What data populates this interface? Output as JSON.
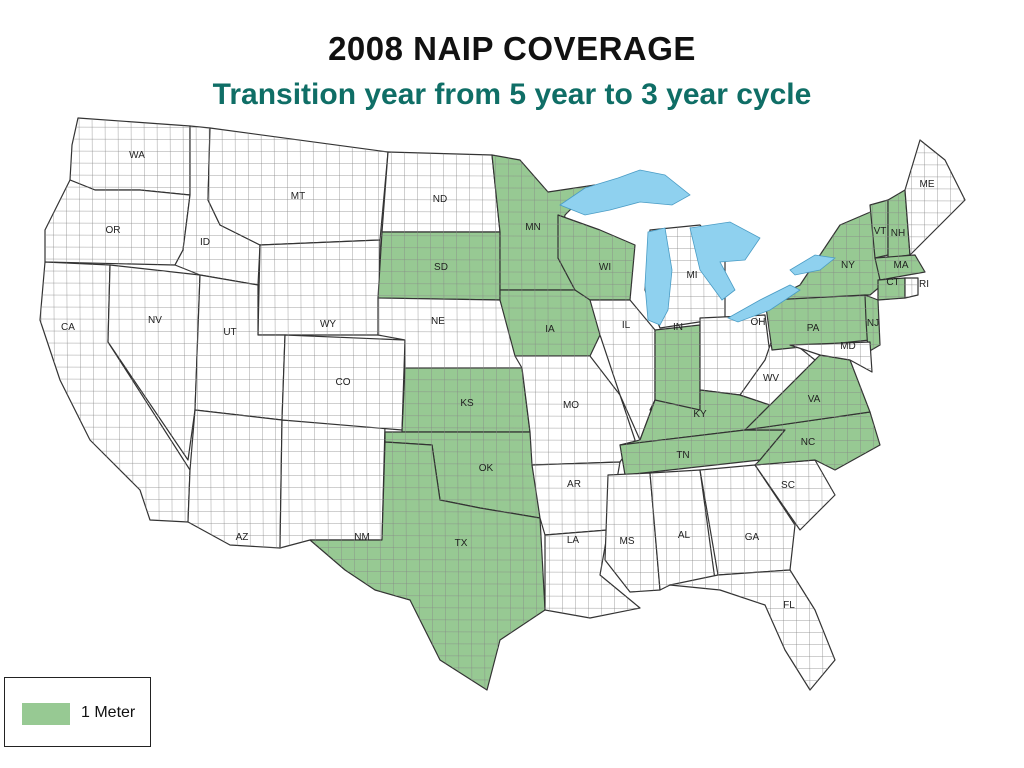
{
  "title": "2008 NAIP COVERAGE",
  "subtitle": "Transition year from 5 year to 3 year cycle",
  "colors": {
    "subtitle": "#0f6e66",
    "covered": "#97c993",
    "uncovered": "#ffffff",
    "water": "#8fd1ef",
    "border": "#333333"
  },
  "legend": {
    "label": "1 Meter"
  },
  "coverage_1_meter": [
    "MN",
    "SD",
    "WI",
    "IA",
    "KS",
    "OK",
    "TX",
    "IN",
    "KY",
    "TN",
    "NC",
    "VA",
    "PA",
    "NY",
    "VT",
    "NH",
    "MA",
    "CT",
    "NJ"
  ],
  "state_labels": [
    "WA",
    "OR",
    "CA",
    "NV",
    "ID",
    "MT",
    "WY",
    "UT",
    "AZ",
    "NM",
    "CO",
    "ND",
    "SD",
    "NE",
    "KS",
    "OK",
    "TX",
    "MN",
    "IA",
    "MO",
    "AR",
    "LA",
    "WI",
    "IL",
    "MI",
    "IN",
    "OH",
    "KY",
    "TN",
    "MS",
    "AL",
    "GA",
    "FL",
    "SC",
    "NC",
    "VA",
    "WV",
    "PA",
    "NY",
    "VT",
    "NH",
    "ME",
    "MA",
    "CT",
    "RI",
    "NJ",
    "MD"
  ]
}
